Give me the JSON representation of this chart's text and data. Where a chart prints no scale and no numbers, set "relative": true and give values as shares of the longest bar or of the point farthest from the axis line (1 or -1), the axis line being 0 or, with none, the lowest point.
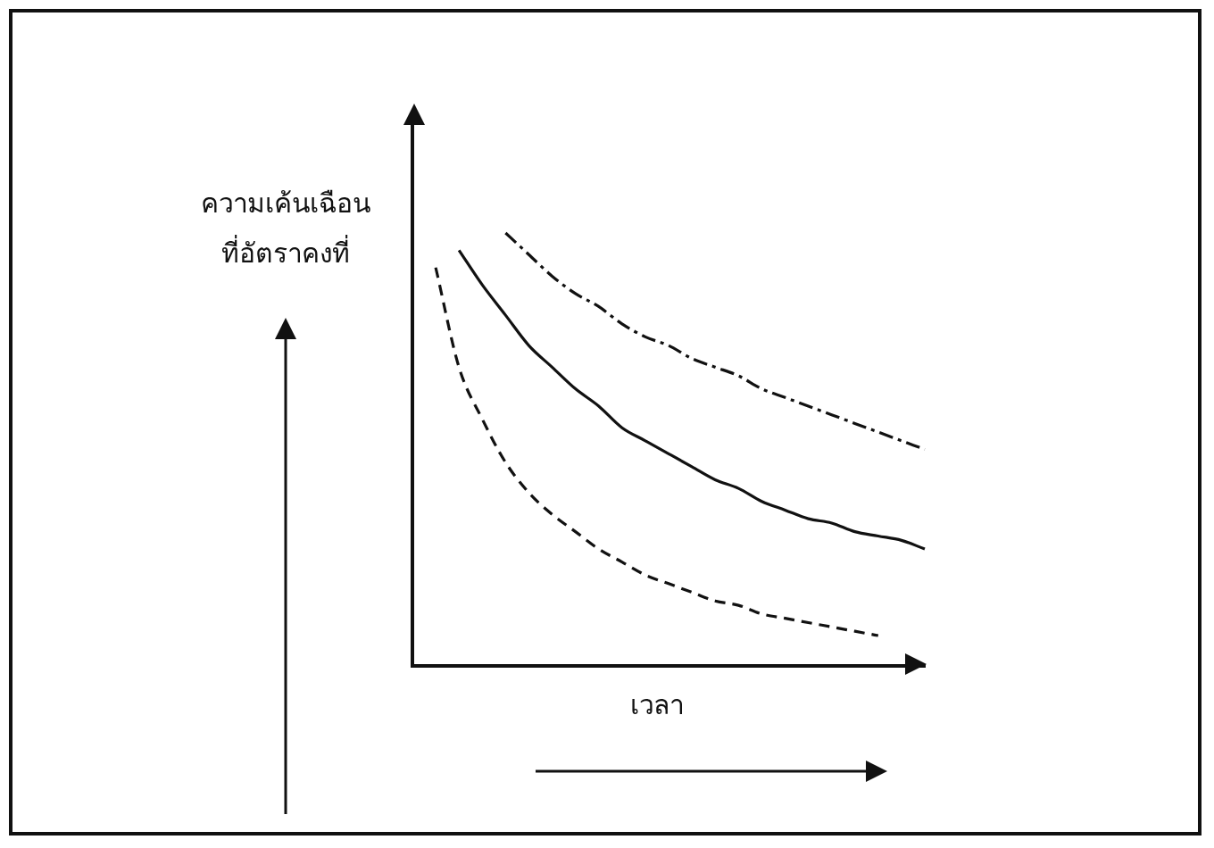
{
  "chart_data": {
    "type": "line",
    "relative": true,
    "xlabel": "เวลา",
    "ylabel": "ความเค้นเฉือน\nที่อัตราคงที่",
    "legend": false,
    "grid": false,
    "tick_labels": false,
    "marker": "none",
    "categories": [
      null,
      null,
      null,
      null,
      null,
      null,
      null,
      null,
      null,
      null,
      null,
      null,
      null,
      null,
      null,
      null,
      null,
      null,
      null,
      null,
      null,
      null,
      null
    ],
    "series": [
      {
        "color": "#111111",
        "line_style": "dashdot",
        "values": [
          null,
          null,
          null,
          null,
          1,
          0.95,
          0.9,
          0.86,
          0.83,
          0.79,
          0.76,
          0.74,
          0.71,
          0.69,
          0.67,
          0.64,
          0.62,
          0.6,
          0.58,
          0.56,
          0.54,
          0.52,
          0.5
        ]
      },
      {
        "color": "#111111",
        "line_style": "solid",
        "values": [
          null,
          null,
          0.96,
          0.88,
          0.81,
          0.74,
          0.69,
          0.64,
          0.6,
          0.55,
          0.52,
          0.49,
          0.46,
          0.43,
          0.41,
          0.38,
          0.36,
          0.34,
          0.33,
          0.31,
          0.3,
          0.29,
          0.27
        ]
      },
      {
        "color": "#111111",
        "line_style": "dashed",
        "values": [
          null,
          0.92,
          0.69,
          0.57,
          0.47,
          0.4,
          0.35,
          0.31,
          0.27,
          0.24,
          0.21,
          0.19,
          0.17,
          0.15,
          0.14,
          0.12,
          0.11,
          0.1,
          0.09,
          0.08,
          0.07,
          null,
          null
        ]
      }
    ]
  }
}
